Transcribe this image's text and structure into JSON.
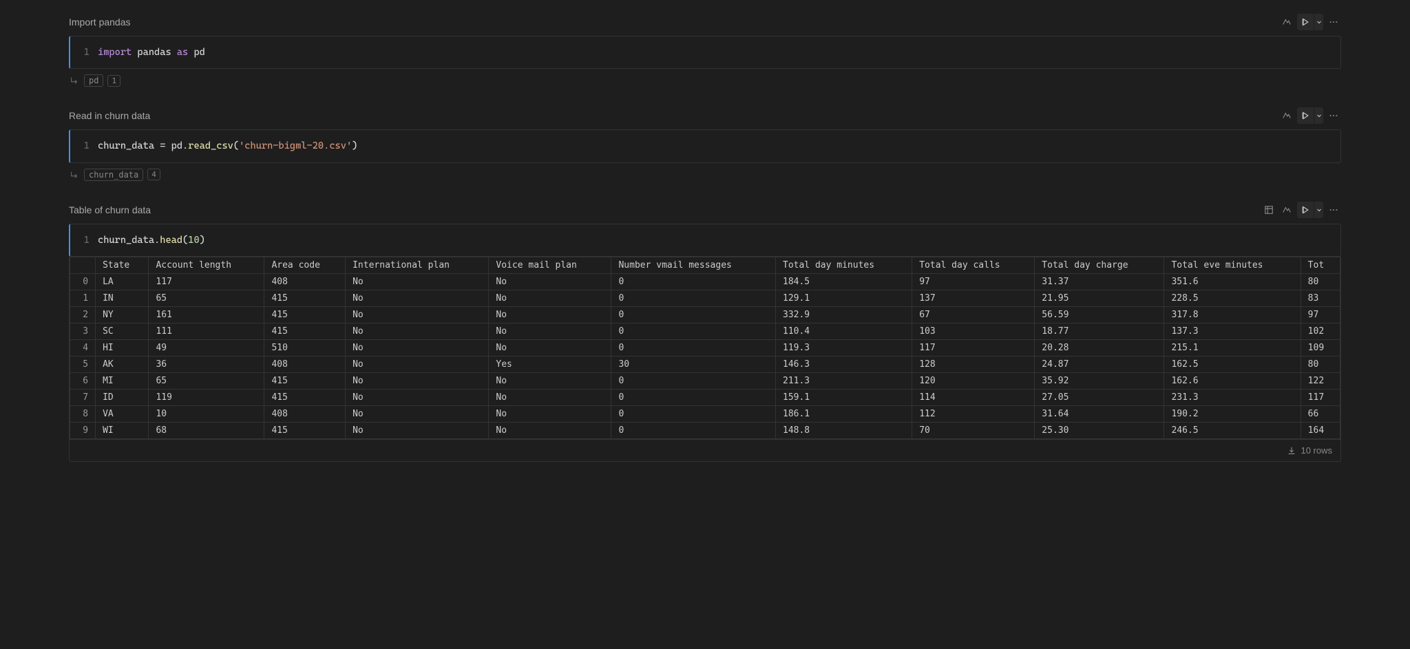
{
  "cells": [
    {
      "title": "Import pandas",
      "line_no": "1",
      "code_tokens": [
        {
          "t": "import",
          "c": "tok-kw"
        },
        {
          "t": " ",
          "c": ""
        },
        {
          "t": "pandas",
          "c": "tok-id"
        },
        {
          "t": " ",
          "c": ""
        },
        {
          "t": "as",
          "c": "tok-kw"
        },
        {
          "t": " ",
          "c": ""
        },
        {
          "t": "pd",
          "c": "tok-id"
        }
      ],
      "output_pills": [
        {
          "text": "pd"
        },
        {
          "text": "1"
        }
      ]
    },
    {
      "title": "Read in churn data",
      "line_no": "1",
      "code_tokens": [
        {
          "t": "churn_data",
          "c": "tok-id"
        },
        {
          "t": " = ",
          "c": "tok-op"
        },
        {
          "t": "pd",
          "c": "tok-id"
        },
        {
          "t": ".",
          "c": "tok-op"
        },
        {
          "t": "read_csv",
          "c": "tok-fn"
        },
        {
          "t": "(",
          "c": "tok-op"
        },
        {
          "t": "'churn-bigml-20.csv'",
          "c": "tok-str"
        },
        {
          "t": ")",
          "c": "tok-op"
        }
      ],
      "output_pills": [
        {
          "text": "churn_data"
        },
        {
          "text": "4"
        }
      ]
    },
    {
      "title": "Table of churn data",
      "line_no": "1",
      "code_tokens": [
        {
          "t": "churn_data",
          "c": "tok-id"
        },
        {
          "t": ".",
          "c": "tok-op"
        },
        {
          "t": "head",
          "c": "tok-fn"
        },
        {
          "t": "(",
          "c": "tok-op"
        },
        {
          "t": "10",
          "c": "tok-num"
        },
        {
          "t": ")",
          "c": "tok-op"
        }
      ],
      "has_table_icon": true
    }
  ],
  "table": {
    "columns": [
      "",
      "State",
      "Account length",
      "Area code",
      "International plan",
      "Voice mail plan",
      "Number vmail messages",
      "Total day minutes",
      "Total day calls",
      "Total day charge",
      "Total eve minutes",
      "Tot"
    ],
    "rows": [
      [
        "0",
        "LA",
        "117",
        "408",
        "No",
        "No",
        "0",
        "184.5",
        "97",
        "31.37",
        "351.6",
        "80"
      ],
      [
        "1",
        "IN",
        "65",
        "415",
        "No",
        "No",
        "0",
        "129.1",
        "137",
        "21.95",
        "228.5",
        "83"
      ],
      [
        "2",
        "NY",
        "161",
        "415",
        "No",
        "No",
        "0",
        "332.9",
        "67",
        "56.59",
        "317.8",
        "97"
      ],
      [
        "3",
        "SC",
        "111",
        "415",
        "No",
        "No",
        "0",
        "110.4",
        "103",
        "18.77",
        "137.3",
        "102"
      ],
      [
        "4",
        "HI",
        "49",
        "510",
        "No",
        "No",
        "0",
        "119.3",
        "117",
        "20.28",
        "215.1",
        "109"
      ],
      [
        "5",
        "AK",
        "36",
        "408",
        "No",
        "Yes",
        "30",
        "146.3",
        "128",
        "24.87",
        "162.5",
        "80"
      ],
      [
        "6",
        "MI",
        "65",
        "415",
        "No",
        "No",
        "0",
        "211.3",
        "120",
        "35.92",
        "162.6",
        "122"
      ],
      [
        "7",
        "ID",
        "119",
        "415",
        "No",
        "No",
        "0",
        "159.1",
        "114",
        "27.05",
        "231.3",
        "117"
      ],
      [
        "8",
        "VA",
        "10",
        "408",
        "No",
        "No",
        "0",
        "186.1",
        "112",
        "31.64",
        "190.2",
        "66"
      ],
      [
        "9",
        "WI",
        "68",
        "415",
        "No",
        "No",
        "0",
        "148.8",
        "70",
        "25.30",
        "246.5",
        "164"
      ]
    ],
    "footer": "10 rows"
  },
  "colors": {
    "bg": "#1e1e1e",
    "border": "#333333",
    "accent": "#3794ff",
    "text": "#cccccc",
    "keyword": "#b58ad4",
    "string": "#ce9178",
    "function": "#dcdcaa",
    "number": "#b5cea8"
  }
}
